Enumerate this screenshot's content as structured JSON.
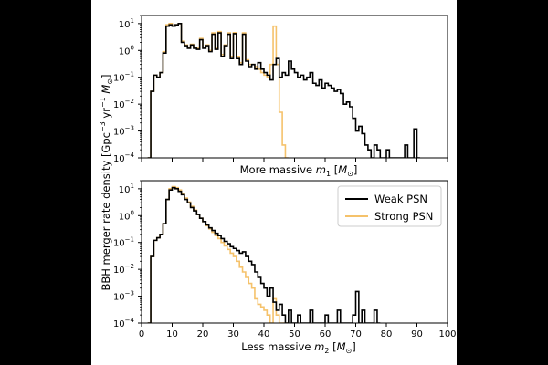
{
  "figure": {
    "ylabel_main": "BBH merger rate density [Gpc",
    "ylabel_exp1": "−3",
    "ylabel_mid": " yr",
    "ylabel_exp2": "−1",
    "ylabel_unit": " M",
    "ylabel_sub": "⊙",
    "ylabel_close": "]",
    "colors": {
      "weak": "#000000",
      "strong": "#F5C26B"
    }
  },
  "chart_data": [
    {
      "type": "line",
      "id": "top",
      "xlabel_pre": "More massive ",
      "xlabel_var": "m",
      "xlabel_varsub": "1",
      "xlabel_unit_pre": " [",
      "xlabel_unit": "M",
      "xlabel_unitsub": "⊙",
      "xlabel_unit_post": "]",
      "xlim": [
        0,
        100
      ],
      "ylim": [
        0.0001,
        20
      ],
      "yscale": "log",
      "yticks": [
        {
          "exp": -4,
          "label": "10",
          "sup": "−4"
        },
        {
          "exp": -3,
          "label": "10",
          "sup": "−3"
        },
        {
          "exp": -2,
          "label": "10",
          "sup": "−2"
        },
        {
          "exp": -1,
          "label": "10",
          "sup": "−1"
        },
        {
          "exp": 0,
          "label": "10",
          "sup": "0"
        },
        {
          "exp": 1,
          "label": "10",
          "sup": "1"
        }
      ],
      "xticks": [
        0,
        10,
        20,
        30,
        40,
        50,
        60,
        70,
        80,
        90,
        100
      ],
      "show_xticklabels": false,
      "series": [
        {
          "name": "Weak PSN",
          "x": [
            2,
            3,
            4,
            5,
            6,
            7,
            8,
            9,
            10,
            11,
            12,
            13,
            14,
            15,
            16,
            17,
            18,
            19,
            20,
            21,
            22,
            23,
            24,
            25,
            26,
            27,
            28,
            29,
            30,
            31,
            32,
            33,
            34,
            35,
            36,
            37,
            38,
            39,
            40,
            41,
            42,
            43,
            44,
            45,
            46,
            47,
            48,
            49,
            50,
            51,
            52,
            53,
            54,
            55,
            56,
            57,
            58,
            59,
            60,
            61,
            62,
            63,
            64,
            65,
            66,
            67,
            68,
            69,
            70,
            71,
            72,
            73,
            74,
            75,
            76,
            77,
            78,
            79,
            80,
            81,
            82,
            83,
            84,
            85,
            86,
            87,
            88,
            89,
            90
          ],
          "y": [
            0.0001,
            0.03,
            0.12,
            0.1,
            0.15,
            0.8,
            8,
            9,
            8,
            9,
            10,
            2,
            1.5,
            1.2,
            1.6,
            1.2,
            1.1,
            2.5,
            1.2,
            1.5,
            0.9,
            4,
            1.1,
            4.5,
            0.6,
            1.5,
            4,
            0.5,
            4.2,
            0.5,
            0.3,
            4,
            0.4,
            0.25,
            0.3,
            0.2,
            0.35,
            0.2,
            0.15,
            0.12,
            0.08,
            0.3,
            0.5,
            0.1,
            0.15,
            0.12,
            0.4,
            0.2,
            0.15,
            0.1,
            0.12,
            0.08,
            0.1,
            0.15,
            0.06,
            0.05,
            0.08,
            0.04,
            0.06,
            0.05,
            0.04,
            0.03,
            0.035,
            0.025,
            0.01,
            0.012,
            0.008,
            0.003,
            0.001,
            0.0015,
            0.0008,
            0.0003,
            0.0002,
            0.0001,
            0.0003,
            0.0002,
            0.0001,
            0.0001,
            0.0002,
            0.0001,
            0.0001,
            0.0001,
            0.0001,
            0.0001,
            0.0003,
            0.0001,
            0.0001,
            0.0012,
            0.0001
          ]
        },
        {
          "name": "Strong PSN",
          "x": [
            2,
            3,
            4,
            5,
            6,
            7,
            8,
            9,
            10,
            11,
            12,
            13,
            14,
            15,
            16,
            17,
            18,
            19,
            20,
            21,
            22,
            23,
            24,
            25,
            26,
            27,
            28,
            29,
            30,
            31,
            32,
            33,
            34,
            35,
            36,
            37,
            38,
            39,
            40,
            41,
            42,
            43,
            44,
            45,
            46,
            47
          ],
          "y": [
            0.0001,
            0.03,
            0.12,
            0.1,
            0.15,
            0.9,
            9,
            10,
            8,
            9,
            10,
            2.2,
            1.6,
            1.3,
            1.7,
            1.3,
            1.2,
            2.8,
            1.3,
            1.6,
            1.0,
            4.5,
            1.2,
            5,
            0.7,
            1.6,
            4.5,
            0.6,
            4.6,
            0.6,
            0.35,
            4.5,
            0.45,
            0.3,
            0.3,
            0.25,
            0.2,
            0.15,
            0.12,
            0.1,
            0.3,
            8,
            0.3,
            0.005,
            0.0003,
            0.0001
          ]
        }
      ]
    },
    {
      "type": "line",
      "id": "bottom",
      "xlabel_pre": "Less massive ",
      "xlabel_var": "m",
      "xlabel_varsub": "2",
      "xlabel_unit_pre": " [",
      "xlabel_unit": "M",
      "xlabel_unitsub": "⊙",
      "xlabel_unit_post": "]",
      "xlim": [
        0,
        100
      ],
      "ylim": [
        0.0001,
        20
      ],
      "yscale": "log",
      "yticks": [
        {
          "exp": -4,
          "label": "10",
          "sup": "−4"
        },
        {
          "exp": -3,
          "label": "10",
          "sup": "−3"
        },
        {
          "exp": -2,
          "label": "10",
          "sup": "−2"
        },
        {
          "exp": -1,
          "label": "10",
          "sup": "−1"
        },
        {
          "exp": 0,
          "label": "10",
          "sup": "0"
        },
        {
          "exp": 1,
          "label": "10",
          "sup": "1"
        }
      ],
      "xticks": [
        0,
        10,
        20,
        30,
        40,
        50,
        60,
        70,
        80,
        90,
        100
      ],
      "show_xticklabels": true,
      "legend": {
        "position": "top-right",
        "entries": [
          "Weak PSN",
          "Strong PSN"
        ]
      },
      "series": [
        {
          "name": "Weak PSN",
          "x": [
            2,
            3,
            4,
            5,
            6,
            7,
            8,
            9,
            10,
            11,
            12,
            13,
            14,
            15,
            16,
            17,
            18,
            19,
            20,
            21,
            22,
            23,
            24,
            25,
            26,
            27,
            28,
            29,
            30,
            31,
            32,
            33,
            34,
            35,
            36,
            37,
            38,
            39,
            40,
            41,
            42,
            43,
            44,
            45,
            46,
            47,
            48,
            49,
            50,
            51,
            52,
            53,
            54,
            55,
            56,
            57,
            58,
            59,
            60,
            61,
            62,
            63,
            64,
            65,
            66,
            67,
            68,
            69,
            70,
            71,
            72,
            73,
            74,
            75,
            76,
            77
          ],
          "y": [
            0.0001,
            0.03,
            0.12,
            0.15,
            0.2,
            0.5,
            4,
            9,
            11,
            10,
            8,
            6,
            4,
            3,
            2,
            1.5,
            1.1,
            0.8,
            0.6,
            0.45,
            0.35,
            0.28,
            0.22,
            0.18,
            0.14,
            0.11,
            0.09,
            0.07,
            0.06,
            0.05,
            0.04,
            0.045,
            0.03,
            0.02,
            0.015,
            0.008,
            0.005,
            0.003,
            0.002,
            0.001,
            0.002,
            0.0006,
            0.0003,
            0.0005,
            0.0002,
            0.0001,
            0.0003,
            0.0001,
            0.0001,
            0.0002,
            0.0001,
            0.0001,
            0.0001,
            0.0003,
            0.0001,
            0.0001,
            0.0001,
            0.0001,
            0.0002,
            0.0001,
            0.0001,
            0.0001,
            0.0003,
            0.0001,
            0.0001,
            0.0001,
            0.0001,
            0.0002,
            0.0015,
            0.0001,
            0.0003,
            0.0001,
            0.0001,
            0.0001,
            0.0003,
            0.0001
          ]
        },
        {
          "name": "Strong PSN",
          "x": [
            2,
            3,
            4,
            5,
            6,
            7,
            8,
            9,
            10,
            11,
            12,
            13,
            14,
            15,
            16,
            17,
            18,
            19,
            20,
            21,
            22,
            23,
            24,
            25,
            26,
            27,
            28,
            29,
            30,
            31,
            32,
            33,
            34,
            35,
            36,
            37,
            38,
            39,
            40,
            41,
            42,
            43,
            44,
            45,
            46,
            47
          ],
          "y": [
            0.0001,
            0.03,
            0.12,
            0.15,
            0.2,
            0.5,
            4,
            10,
            12,
            11,
            9,
            6.5,
            4.5,
            3.2,
            2.2,
            1.6,
            1.1,
            0.8,
            0.6,
            0.42,
            0.32,
            0.24,
            0.18,
            0.14,
            0.1,
            0.075,
            0.055,
            0.04,
            0.03,
            0.02,
            0.012,
            0.008,
            0.005,
            0.003,
            0.002,
            0.0008,
            0.0005,
            0.0004,
            0.0003,
            0.0002,
            0.0001,
            0.0008,
            0.0002,
            0.0001,
            0.0001,
            0.0001
          ]
        }
      ]
    }
  ]
}
